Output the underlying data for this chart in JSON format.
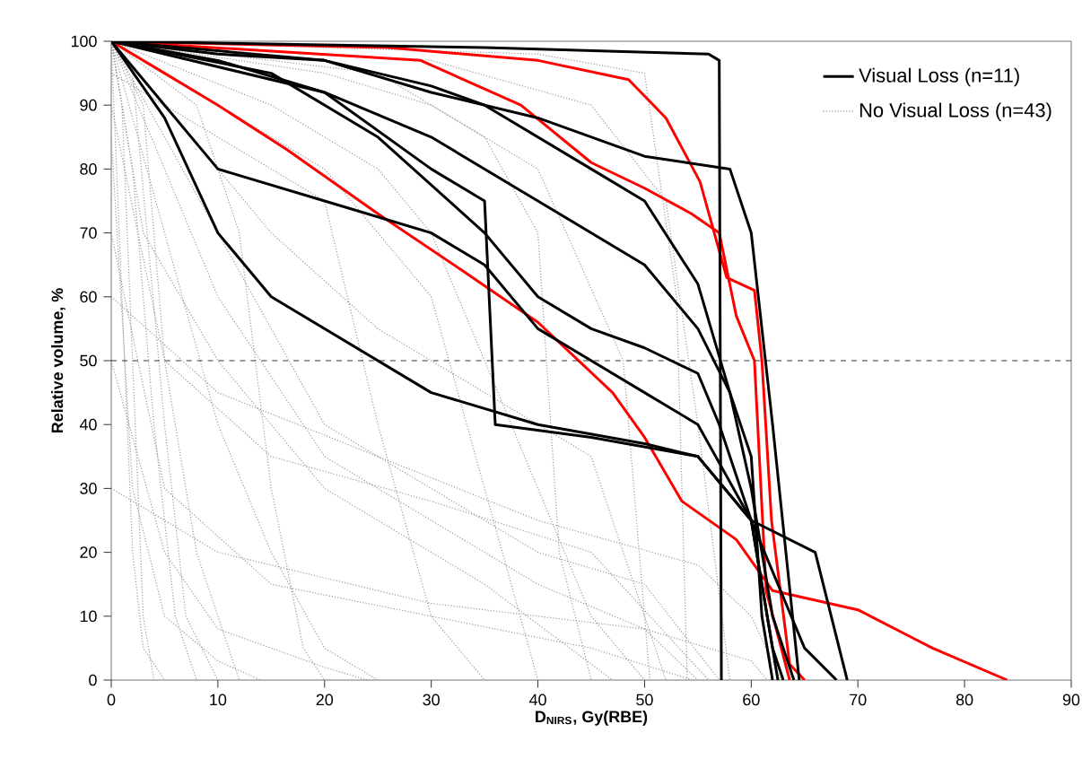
{
  "chart_data": {
    "type": "line",
    "xlabel": "D$_{NIRS}$, Gy(RBE)",
    "ylabel": "Relative volume, %",
    "xlim": [
      0,
      90
    ],
    "ylim": [
      0,
      100
    ],
    "xticks": [
      0,
      10,
      20,
      30,
      40,
      50,
      60,
      70,
      80,
      90
    ],
    "yticks": [
      0,
      10,
      20,
      30,
      40,
      50,
      60,
      70,
      80,
      90,
      100
    ],
    "legend": "top right",
    "grid": false,
    "ref_lines": [
      {
        "axis": "y",
        "value": 50,
        "color": "#000000",
        "line_style": "dashed"
      }
    ],
    "series": [
      {
        "name": "Visual Loss (n=11)",
        "color": "#000000",
        "line_style": "solid",
        "x": [
          0,
          35,
          56,
          57,
          57.2
        ],
        "values": [
          100,
          99,
          98,
          97,
          0
        ]
      },
      {
        "color": "#000000",
        "line_style": "solid",
        "x": [
          0,
          10,
          20,
          30,
          40,
          50,
          55,
          58,
          60,
          62,
          64
        ],
        "values": [
          100,
          97,
          92,
          85,
          75,
          65,
          55,
          45,
          30,
          10,
          0
        ]
      },
      {
        "color": "#000000",
        "line_style": "solid",
        "x": [
          0,
          5,
          10,
          20,
          30,
          35,
          40,
          45,
          50,
          55,
          60,
          65,
          68
        ],
        "values": [
          100,
          90,
          80,
          75,
          70,
          65,
          55,
          50,
          45,
          40,
          25,
          5,
          0
        ]
      },
      {
        "color": "#000000",
        "line_style": "solid",
        "x": [
          0,
          5,
          10,
          15,
          20,
          30,
          40,
          50,
          55,
          60,
          62,
          63
        ],
        "values": [
          100,
          88,
          70,
          60,
          55,
          45,
          40,
          37,
          35,
          25,
          5,
          0
        ]
      },
      {
        "color": "#000000",
        "line_style": "solid",
        "x": [
          0,
          20,
          30,
          35,
          40,
          45,
          50,
          55,
          58,
          60,
          61,
          62
        ],
        "values": [
          100,
          97,
          93,
          90,
          85,
          80,
          75,
          62,
          45,
          35,
          10,
          0
        ]
      },
      {
        "color": "#000000",
        "line_style": "solid",
        "x": [
          0,
          15,
          25,
          35,
          40,
          45,
          50,
          55,
          57,
          60,
          62.5
        ],
        "values": [
          100,
          95,
          85,
          70,
          60,
          55,
          52,
          48,
          40,
          25,
          0
        ]
      },
      {
        "color": "#000000",
        "line_style": "solid",
        "x": [
          0,
          20,
          30,
          35,
          36,
          45,
          55,
          60,
          66,
          69
        ],
        "values": [
          100,
          92,
          80,
          75,
          40,
          38,
          35,
          25,
          20,
          0
        ]
      },
      {
        "color": "#000000",
        "line_style": "solid",
        "x": [
          0,
          10,
          20,
          30,
          40,
          50,
          58,
          60,
          62,
          64.5
        ],
        "values": [
          100,
          98,
          97,
          92,
          88,
          82,
          80,
          70,
          40,
          0
        ]
      },
      {
        "color": "#ff0000",
        "line_style": "solid",
        "x": [
          0,
          26,
          40,
          48.5,
          52,
          55.2,
          57.7,
          60.3,
          61,
          61.9,
          63.6,
          65
        ],
        "values": [
          100,
          99,
          97,
          94,
          88,
          78,
          63,
          61,
          50,
          25,
          2.5,
          0
        ]
      },
      {
        "color": "#ff0000",
        "line_style": "solid",
        "x": [
          0,
          29,
          38.4,
          45,
          50,
          54.4,
          57,
          58.6,
          60.3,
          61.4,
          63.6
        ],
        "values": [
          100,
          97,
          90,
          81,
          77,
          73,
          70,
          57,
          50,
          14,
          0
        ]
      },
      {
        "color": "#ff0000",
        "line_style": "solid",
        "x": [
          0,
          5,
          10,
          16.5,
          25,
          33,
          40,
          47,
          50,
          53.5,
          58.6,
          62,
          70,
          77,
          84
        ],
        "values": [
          100,
          95,
          90,
          83,
          73,
          64,
          56,
          45,
          38,
          28,
          22,
          14,
          11,
          5,
          0
        ]
      },
      {
        "name": "No Visual Loss (n=43)",
        "color": "#9a9a9a",
        "line_style": "dotted",
        "x": [
          0,
          1,
          2,
          3,
          5
        ],
        "values": [
          100,
          60,
          20,
          5,
          0
        ]
      },
      {
        "color": "#9a9a9a",
        "line_style": "dotted",
        "x": [
          0,
          2,
          4,
          6,
          8
        ],
        "values": [
          100,
          80,
          40,
          10,
          0
        ]
      },
      {
        "color": "#9a9a9a",
        "line_style": "dotted",
        "x": [
          0,
          3,
          5,
          8,
          12
        ],
        "values": [
          100,
          90,
          50,
          20,
          0
        ]
      },
      {
        "color": "#9a9a9a",
        "line_style": "dotted",
        "x": [
          0,
          5,
          10,
          15,
          20,
          25
        ],
        "values": [
          100,
          70,
          40,
          20,
          5,
          0
        ]
      },
      {
        "color": "#9a9a9a",
        "line_style": "dotted",
        "x": [
          0,
          10,
          20,
          25,
          30,
          35
        ],
        "values": [
          95,
          85,
          75,
          40,
          10,
          0
        ]
      },
      {
        "color": "#9a9a9a",
        "line_style": "dotted",
        "x": [
          0,
          10,
          20,
          30,
          35,
          40
        ],
        "values": [
          100,
          90,
          80,
          60,
          30,
          0
        ]
      },
      {
        "color": "#9a9a9a",
        "line_style": "dotted",
        "x": [
          0,
          15,
          25,
          30,
          35,
          45,
          50
        ],
        "values": [
          100,
          90,
          80,
          70,
          50,
          10,
          0
        ]
      },
      {
        "color": "#9a9a9a",
        "line_style": "dotted",
        "x": [
          0,
          20,
          30,
          40,
          48,
          50.5
        ],
        "values": [
          100,
          95,
          90,
          80,
          50,
          0
        ]
      },
      {
        "color": "#9a9a9a",
        "line_style": "dotted",
        "x": [
          0,
          10,
          20,
          30,
          40,
          50,
          55
        ],
        "values": [
          100,
          60,
          35,
          25,
          15,
          8,
          0
        ]
      },
      {
        "color": "#9a9a9a",
        "line_style": "dotted",
        "x": [
          0,
          5,
          15,
          30,
          45,
          56
        ],
        "values": [
          90,
          50,
          35,
          28,
          20,
          0
        ]
      },
      {
        "color": "#9a9a9a",
        "line_style": "dotted",
        "x": [
          0,
          20,
          30,
          40,
          50,
          57
        ],
        "values": [
          100,
          40,
          30,
          20,
          15,
          0
        ]
      },
      {
        "color": "#9a9a9a",
        "line_style": "dotted",
        "x": [
          0,
          5,
          15,
          30,
          45,
          54.5
        ],
        "values": [
          70,
          30,
          15,
          10,
          5,
          0
        ]
      },
      {
        "color": "#9a9a9a",
        "line_style": "dotted",
        "x": [
          0,
          2,
          5,
          7,
          10
        ],
        "values": [
          100,
          95,
          40,
          10,
          0
        ]
      },
      {
        "color": "#9a9a9a",
        "line_style": "dotted",
        "x": [
          0,
          8,
          12,
          15,
          18,
          20
        ],
        "values": [
          100,
          90,
          70,
          30,
          5,
          0
        ]
      },
      {
        "color": "#9a9a9a",
        "line_style": "dotted",
        "x": [
          0,
          25,
          35,
          40,
          42,
          45
        ],
        "values": [
          100,
          95,
          85,
          70,
          20,
          0
        ]
      },
      {
        "color": "#9a9a9a",
        "line_style": "dotted",
        "x": [
          0,
          30,
          45,
          52,
          55,
          58
        ],
        "values": [
          100,
          97,
          90,
          75,
          40,
          0
        ]
      },
      {
        "color": "#9a9a9a",
        "line_style": "dotted",
        "x": [
          0,
          10,
          25,
          40,
          55,
          60,
          62.8
        ],
        "values": [
          60,
          45,
          35,
          25,
          18,
          10,
          0
        ]
      },
      {
        "color": "#9a9a9a",
        "line_style": "dotted",
        "x": [
          0,
          10,
          30,
          50,
          60,
          61.5
        ],
        "values": [
          30,
          20,
          12,
          8,
          3,
          0
        ]
      },
      {
        "color": "#9a9a9a",
        "line_style": "dotted",
        "x": [
          0,
          3,
          10,
          20,
          35,
          47
        ],
        "values": [
          100,
          70,
          50,
          30,
          15,
          0
        ]
      },
      {
        "color": "#9a9a9a",
        "line_style": "dotted",
        "x": [
          0,
          2,
          5,
          10,
          14
        ],
        "values": [
          85,
          30,
          10,
          3,
          0
        ]
      },
      {
        "color": "#9a9a9a",
        "line_style": "dotted",
        "x": [
          0,
          40,
          50,
          53,
          54
        ],
        "values": [
          100,
          98,
          95,
          60,
          0
        ]
      },
      {
        "color": "#9a9a9a",
        "line_style": "dotted",
        "x": [
          0,
          15,
          25,
          35,
          45,
          52
        ],
        "values": [
          100,
          70,
          55,
          45,
          35,
          0
        ]
      },
      {
        "color": "#9a9a9a",
        "line_style": "dotted",
        "x": [
          0,
          1,
          2,
          3,
          4
        ],
        "values": [
          100,
          90,
          50,
          10,
          0
        ]
      },
      {
        "color": "#9a9a9a",
        "line_style": "dotted",
        "x": [
          0,
          5,
          10,
          20,
          24
        ],
        "values": [
          50,
          20,
          8,
          2,
          0
        ]
      }
    ]
  }
}
